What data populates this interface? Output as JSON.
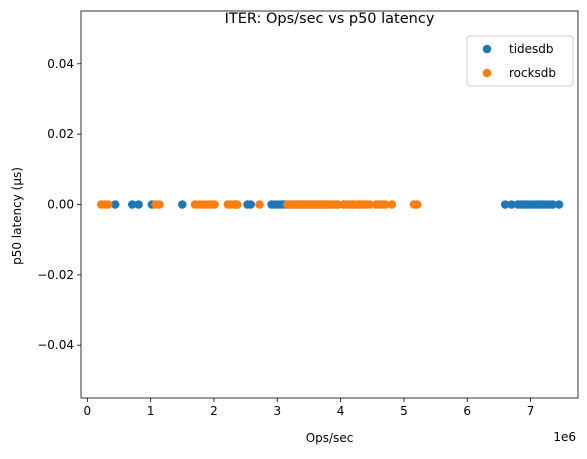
{
  "chart_data": {
    "type": "scatter",
    "title": "ITER: Ops/sec vs p50 latency",
    "xlabel": "Ops/sec",
    "ylabel": "p50 latency (µs)",
    "x_offset_label": "1e6",
    "x_scale": 1000000,
    "xlim": [
      -100000,
      7750000
    ],
    "ylim": [
      -0.055,
      0.055
    ],
    "x_ticks": [
      0,
      1000000,
      2000000,
      3000000,
      4000000,
      5000000,
      6000000,
      7000000
    ],
    "x_tick_labels": [
      "0",
      "1",
      "2",
      "3",
      "4",
      "5",
      "6",
      "7"
    ],
    "y_ticks": [
      0.04,
      0.02,
      0.0,
      -0.02,
      -0.04
    ],
    "y_tick_labels": [
      "0.04",
      "0.02",
      "0.00",
      "−0.02",
      "−0.04"
    ],
    "grid": false,
    "legend_position": "top-right",
    "series": [
      {
        "name": "tidesdb",
        "color": "#1f77b4",
        "x": [
          440000,
          710000,
          810000,
          1020000,
          1500000,
          2350000,
          2530000,
          2580000,
          2910000,
          2960000,
          3010000,
          3070000,
          3120000,
          3180000,
          3240000,
          3300000,
          3350000,
          3400000,
          3450000,
          3500000,
          3550000,
          3600000,
          3650000,
          3700000,
          3750000,
          3800000,
          3850000,
          3950000,
          4050000,
          4200000,
          4300000,
          4400000,
          6600000,
          6700000,
          6800000,
          6850000,
          6900000,
          6950000,
          7000000,
          7050000,
          7100000,
          7150000,
          7200000,
          7250000,
          7300000,
          7350000,
          7450000
        ],
        "y": [
          0,
          0,
          0,
          0,
          0,
          0,
          0,
          0,
          0,
          0,
          0,
          0,
          0,
          0,
          0,
          0,
          0,
          0,
          0,
          0,
          0,
          0,
          0,
          0,
          0,
          0,
          0,
          0,
          0,
          0,
          0,
          0,
          0,
          0,
          0,
          0,
          0,
          0,
          0,
          0,
          0,
          0,
          0,
          0,
          0,
          0,
          0
        ]
      },
      {
        "name": "rocksdb",
        "color": "#ff7f0e",
        "x": [
          220000,
          280000,
          330000,
          1080000,
          1140000,
          1700000,
          1760000,
          1810000,
          1860000,
          1910000,
          1960000,
          2010000,
          2220000,
          2270000,
          2320000,
          2370000,
          2720000,
          3160000,
          3210000,
          3260000,
          3310000,
          3360000,
          3410000,
          3460000,
          3510000,
          3560000,
          3610000,
          3660000,
          3710000,
          3760000,
          3810000,
          3860000,
          3910000,
          3960000,
          4060000,
          4110000,
          4160000,
          4210000,
          4260000,
          4310000,
          4360000,
          4410000,
          4460000,
          4560000,
          4610000,
          4660000,
          4710000,
          4810000,
          5160000,
          5210000
        ],
        "y": [
          0,
          0,
          0,
          0,
          0,
          0,
          0,
          0,
          0,
          0,
          0,
          0,
          0,
          0,
          0,
          0,
          0,
          0,
          0,
          0,
          0,
          0,
          0,
          0,
          0,
          0,
          0,
          0,
          0,
          0,
          0,
          0,
          0,
          0,
          0,
          0,
          0,
          0,
          0,
          0,
          0,
          0,
          0,
          0,
          0,
          0,
          0,
          0,
          0,
          0
        ]
      }
    ]
  }
}
